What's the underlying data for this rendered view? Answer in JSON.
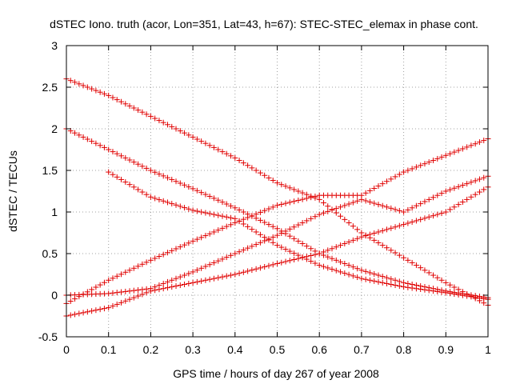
{
  "chart_data": {
    "type": "scatter",
    "title": "dSTEC Iono. truth (acor, Lon=351, Lat=43, h=67): STEC-STEC_elemax in phase cont.",
    "xlabel": "GPS time / hours of day 267 of year 2008",
    "ylabel": "dSTEC  / TECUs",
    "xlim": [
      0,
      1
    ],
    "ylim": [
      -0.5,
      3
    ],
    "x_ticks": [
      0,
      0.1,
      0.2,
      0.3,
      0.4,
      0.5,
      0.6,
      0.7,
      0.8,
      0.9,
      1
    ],
    "x_tick_labels": [
      "0",
      "0.1",
      "0.2",
      "0.3",
      "0.4",
      "0.5",
      "0.6",
      "0.7",
      "0.8",
      "0.9",
      "1"
    ],
    "y_ticks": [
      -0.5,
      0,
      0.5,
      1,
      1.5,
      2,
      2.5,
      3
    ],
    "y_tick_labels": [
      "-0.5",
      "0",
      "0.5",
      "1",
      "1.5",
      "2",
      "2.5",
      "3"
    ],
    "grid": true,
    "marker": "+",
    "color": "#e00000",
    "series": [
      {
        "x": [
          0.0,
          0.1,
          0.2,
          0.3,
          0.4,
          0.5,
          0.6,
          0.7,
          0.8,
          0.9,
          1.0
        ],
        "y": [
          2.6,
          2.4,
          2.15,
          1.9,
          1.65,
          1.35,
          1.15,
          0.75,
          0.45,
          0.15,
          -0.12
        ]
      },
      {
        "x": [
          0.0,
          0.1,
          0.2,
          0.3,
          0.4,
          0.5,
          0.6,
          0.7,
          0.8,
          0.9,
          1.0
        ],
        "y": [
          2.0,
          1.75,
          1.5,
          1.28,
          1.05,
          0.8,
          0.5,
          0.3,
          0.15,
          0.05,
          -0.03
        ]
      },
      {
        "x": [
          0.1,
          0.2,
          0.3,
          0.4,
          0.5,
          0.6,
          0.7,
          0.8,
          0.9,
          1.0
        ],
        "y": [
          1.48,
          1.18,
          1.02,
          0.92,
          0.6,
          0.36,
          0.2,
          0.1,
          0.03,
          -0.05
        ]
      },
      {
        "x": [
          0.0,
          0.1,
          0.2,
          0.3,
          0.4,
          0.5,
          0.6,
          0.7,
          0.8,
          0.9,
          1.0
        ],
        "y": [
          -0.1,
          0.18,
          0.42,
          0.65,
          0.87,
          1.08,
          1.2,
          1.2,
          1.48,
          1.68,
          1.88
        ]
      },
      {
        "x": [
          0.0,
          0.1,
          0.2,
          0.3,
          0.4,
          0.5,
          0.6,
          0.7,
          0.8,
          0.9,
          1.0
        ],
        "y": [
          0.0,
          0.02,
          0.08,
          0.28,
          0.5,
          0.72,
          0.97,
          1.15,
          1.0,
          1.25,
          1.43
        ]
      },
      {
        "x": [
          0.0,
          0.1,
          0.2,
          0.3,
          0.4,
          0.5,
          0.6,
          0.7,
          0.8,
          0.9,
          1.0
        ],
        "y": [
          -0.25,
          -0.15,
          0.05,
          0.15,
          0.25,
          0.38,
          0.5,
          0.7,
          0.85,
          1.0,
          1.3
        ]
      }
    ]
  }
}
